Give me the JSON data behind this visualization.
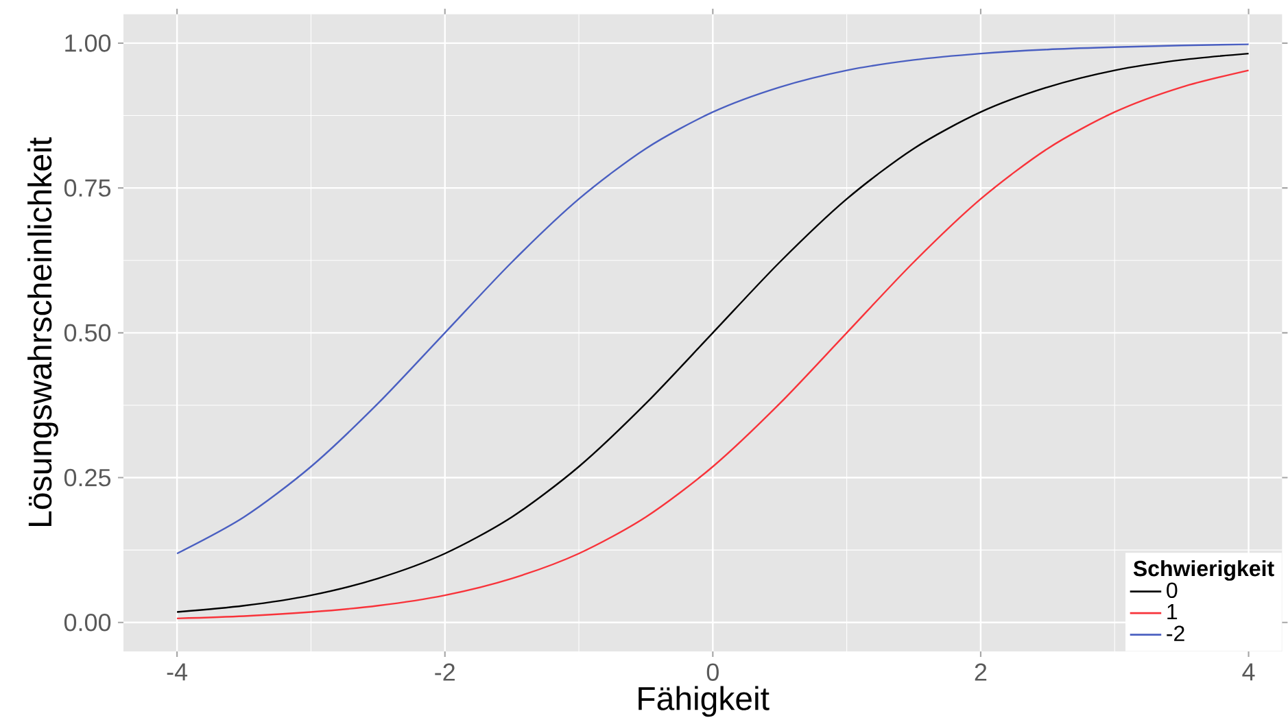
{
  "chart_data": {
    "type": "line",
    "xlabel": "Fähigkeit",
    "ylabel": "Lösungswahrscheinlichkeit",
    "legend_title": "Schwierigkeit",
    "legend": "bottom right",
    "grid": true,
    "marker": "none",
    "line_style": "solid",
    "x": [
      -4,
      -3.5,
      -3,
      -2.5,
      -2,
      -1.5,
      -1,
      -0.5,
      0,
      0.5,
      1,
      1.5,
      2,
      2.5,
      3,
      3.5,
      4
    ],
    "xlim": [
      -4.4,
      4.25
    ],
    "xticks": [
      -4,
      -2,
      0,
      2,
      4
    ],
    "ylim": [
      -0.05,
      1.05
    ],
    "yticks": [
      {
        "value": 0,
        "label": "0.00"
      },
      {
        "value": 0.25,
        "label": "0.25"
      },
      {
        "value": 0.5,
        "label": "0.50"
      },
      {
        "value": 0.75,
        "label": "0.75"
      },
      {
        "value": 1,
        "label": "1.00"
      }
    ],
    "series": [
      {
        "name": "0",
        "color": "#000000",
        "values": [
          0.018,
          0.029,
          0.047,
          0.076,
          0.119,
          0.182,
          0.269,
          0.378,
          0.5,
          0.622,
          0.731,
          0.818,
          0.881,
          0.924,
          0.953,
          0.971,
          0.982
        ]
      },
      {
        "name": "1",
        "color": "#f8333a",
        "values": [
          0.007,
          0.011,
          0.018,
          0.029,
          0.047,
          0.076,
          0.119,
          0.182,
          0.269,
          0.378,
          0.5,
          0.622,
          0.731,
          0.818,
          0.881,
          0.924,
          0.953
        ]
      },
      {
        "name": "-2",
        "color": "#4a5fc1",
        "values": [
          0.119,
          0.182,
          0.269,
          0.378,
          0.5,
          0.622,
          0.731,
          0.818,
          0.881,
          0.924,
          0.953,
          0.971,
          0.982,
          0.989,
          0.993,
          0.996,
          0.998
        ]
      }
    ]
  }
}
